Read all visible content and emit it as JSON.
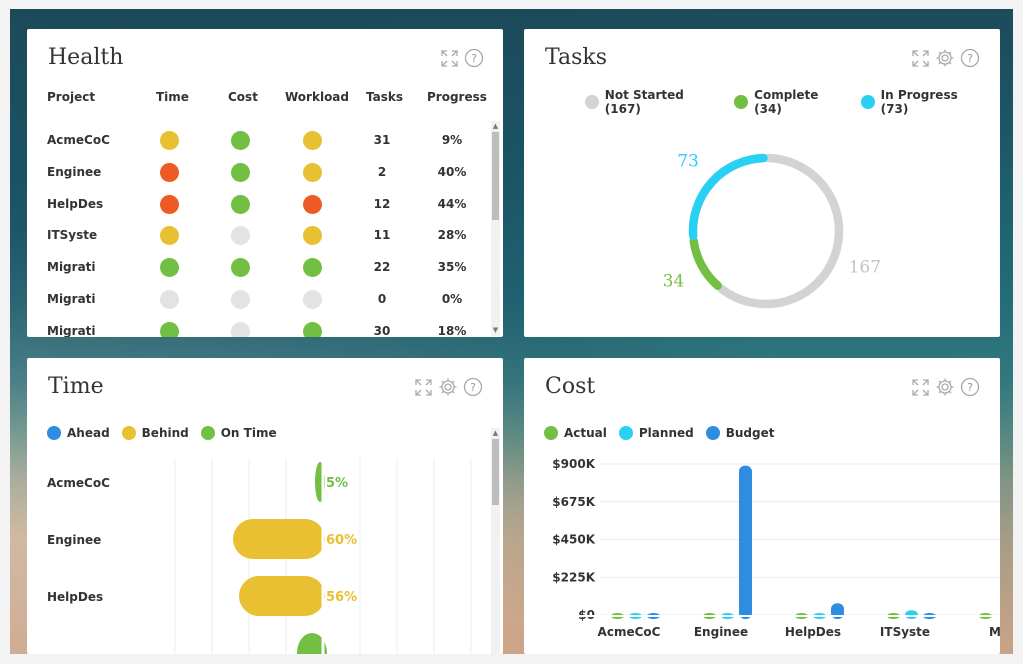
{
  "colors": {
    "yellow": "#e8c031",
    "red": "#ee5a24",
    "green": "#72bf44",
    "gray": "#e3e3e3",
    "cyan": "#29d0f3",
    "blue": "#2e8de0",
    "donut_gray": "#d3d3d3"
  },
  "health": {
    "title": "Health",
    "columns": [
      "Project",
      "Time",
      "Cost",
      "Workload",
      "Tasks",
      "Progress"
    ],
    "rows": [
      {
        "project": "AcmeCoC",
        "time": "yellow",
        "cost": "green",
        "workload": "yellow",
        "tasks": "31",
        "progress": "9%"
      },
      {
        "project": "Enginee",
        "time": "red",
        "cost": "green",
        "workload": "yellow",
        "tasks": "2",
        "progress": "40%"
      },
      {
        "project": "HelpDes",
        "time": "red",
        "cost": "green",
        "workload": "red",
        "tasks": "12",
        "progress": "44%"
      },
      {
        "project": "ITSyste",
        "time": "yellow",
        "cost": "gray",
        "workload": "yellow",
        "tasks": "11",
        "progress": "28%"
      },
      {
        "project": "Migrati",
        "time": "green",
        "cost": "green",
        "workload": "green",
        "tasks": "22",
        "progress": "35%"
      },
      {
        "project": "Migrati",
        "time": "gray",
        "cost": "gray",
        "workload": "gray",
        "tasks": "0",
        "progress": "0%"
      },
      {
        "project": "Migrati",
        "time": "green",
        "cost": "gray",
        "workload": "green",
        "tasks": "30",
        "progress": "18%"
      }
    ],
    "icons": [
      "expand-icon",
      "help-icon"
    ]
  },
  "tasks": {
    "title": "Tasks",
    "icons": [
      "expand-icon",
      "gear-icon",
      "help-icon"
    ],
    "legend": [
      {
        "label": "Not Started (167)",
        "color": "#d3d3d3"
      },
      {
        "label": "Complete (34)",
        "color": "#72bf44"
      },
      {
        "label": "In Progress (73)",
        "color": "#29d0f3"
      }
    ],
    "chart_data": {
      "type": "pie",
      "donut": true,
      "labels": [
        "Not Started",
        "Complete",
        "In Progress"
      ],
      "values": [
        167,
        34,
        73
      ],
      "data_labels": [
        "167",
        "34",
        "73"
      ],
      "colors": [
        "#d3d3d3",
        "#72bf44",
        "#29d0f3"
      ],
      "legend_placement": "top"
    }
  },
  "time": {
    "title": "Time",
    "icons": [
      "expand-icon",
      "gear-icon",
      "help-icon"
    ],
    "legend": [
      {
        "label": "Ahead",
        "color": "#2e8de0"
      },
      {
        "label": "Behind",
        "color": "#e8c031"
      },
      {
        "label": "On Time",
        "color": "#72bf44"
      }
    ],
    "chart_data": {
      "type": "bar",
      "orientation": "horizontal",
      "categories": [
        "AcmeCoC",
        "Enginee",
        "HelpDes"
      ],
      "series": [
        {
          "name": "On Time",
          "values": [
            5,
            null,
            null
          ]
        },
        {
          "name": "Behind",
          "values": [
            null,
            60,
            56
          ]
        }
      ],
      "data_labels": [
        "5%",
        "60%",
        "56%"
      ],
      "legend_placement": "top-left",
      "grid": true
    }
  },
  "cost": {
    "title": "Cost",
    "icons": [
      "expand-icon",
      "gear-icon",
      "help-icon"
    ],
    "legend": [
      {
        "label": "Actual",
        "color": "#72bf44"
      },
      {
        "label": "Planned",
        "color": "#29d0f3"
      },
      {
        "label": "Budget",
        "color": "#2e8de0"
      }
    ],
    "chart_data": {
      "type": "bar",
      "categories": [
        "AcmeCoC",
        "Enginee",
        "HelpDes",
        "ITSyste",
        "Mi"
      ],
      "series": [
        {
          "name": "Actual",
          "values": [
            5000,
            4000,
            6000,
            8000,
            3000
          ]
        },
        {
          "name": "Planned",
          "values": [
            12000,
            3000,
            9000,
            28000,
            0
          ]
        },
        {
          "name": "Budget",
          "values": [
            9000,
            890000,
            70000,
            6000,
            0
          ]
        }
      ],
      "yticks": [
        "$900K",
        "$675K",
        "$450K",
        "$225K",
        "$0"
      ],
      "ylim": [
        0,
        900000
      ],
      "legend_placement": "top-left",
      "grid": true
    }
  }
}
